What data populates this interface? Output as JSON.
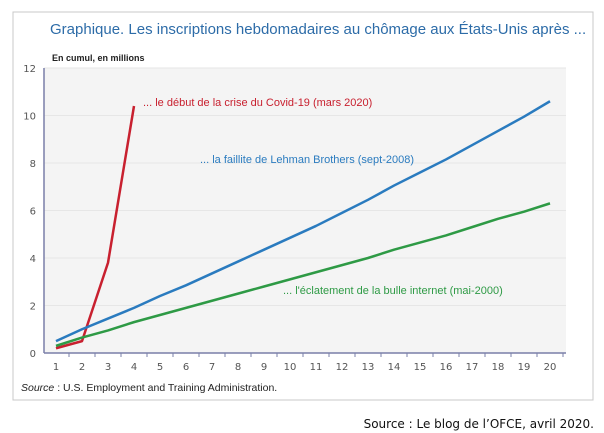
{
  "chart_data": {
    "type": "line",
    "title": "Graphique. Les inscriptions hebdomadaires au chômage aux États-Unis après ...",
    "ylabel": "En cumul, en millions",
    "xlabel": "",
    "ylim": [
      0,
      12
    ],
    "yticks": [
      "0",
      "2",
      "4",
      "6",
      "8",
      "10",
      "12"
    ],
    "x": [
      1,
      2,
      3,
      4,
      5,
      6,
      7,
      8,
      9,
      10,
      11,
      12,
      13,
      14,
      15,
      16,
      17,
      18,
      19,
      20
    ],
    "grid": true,
    "series": [
      {
        "name": "... le début de la crise du Covid-19 (mars 2020)",
        "color": "#c8202f",
        "x": [
          1,
          2,
          3,
          4
        ],
        "values": [
          0.2,
          0.5,
          3.8,
          10.4
        ]
      },
      {
        "name": "... la faillite de Lehman Brothers (sept-2008)",
        "color": "#2a7bbf",
        "values": [
          0.5,
          1.0,
          1.45,
          1.9,
          2.4,
          2.85,
          3.35,
          3.85,
          4.35,
          4.85,
          5.35,
          5.9,
          6.45,
          7.05,
          7.6,
          8.15,
          8.75,
          9.35,
          9.95,
          10.6
        ]
      },
      {
        "name": "... l'éclatement de la bulle internet (mai-2000)",
        "color": "#2e9a45",
        "values": [
          0.3,
          0.65,
          0.95,
          1.3,
          1.6,
          1.9,
          2.2,
          2.5,
          2.8,
          3.1,
          3.4,
          3.7,
          4.0,
          4.35,
          4.65,
          4.95,
          5.3,
          5.65,
          5.95,
          6.3
        ]
      }
    ],
    "source_label": "Source",
    "source_text": " : U.S. Employment and Training Administration."
  },
  "footer": "Source : Le blog de l’OFCE, avril 2020."
}
